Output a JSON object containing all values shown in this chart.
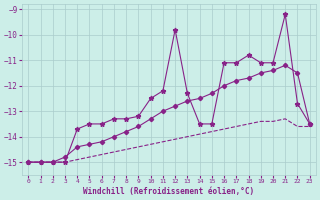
{
  "xlabel": "Windchill (Refroidissement éolien,°C)",
  "bg_color": "#cceee8",
  "grid_color": "#aacccc",
  "line_color": "#882288",
  "x_values": [
    0,
    1,
    2,
    3,
    4,
    5,
    6,
    7,
    8,
    9,
    10,
    11,
    12,
    13,
    14,
    15,
    16,
    17,
    18,
    19,
    20,
    21,
    22,
    23
  ],
  "line1_y": [
    -15.0,
    -15.0,
    -15.0,
    -15.0,
    -13.7,
    -13.5,
    -13.5,
    -13.3,
    -13.3,
    -13.2,
    -12.5,
    -12.2,
    -9.8,
    -12.3,
    -13.5,
    -13.5,
    -11.1,
    -11.1,
    -10.8,
    -11.1,
    -11.1,
    -9.2,
    -12.7,
    -13.5
  ],
  "line2_y": [
    -15.0,
    -15.0,
    -15.0,
    -14.8,
    -14.4,
    -14.3,
    -14.2,
    -14.0,
    -13.8,
    -13.6,
    -13.3,
    -13.0,
    -12.8,
    -12.6,
    -12.5,
    -12.3,
    -12.0,
    -11.8,
    -11.7,
    -11.5,
    -11.4,
    -11.2,
    -11.5,
    -13.5
  ],
  "line3_y": [
    -15.0,
    -15.0,
    -15.0,
    -15.0,
    -14.9,
    -14.8,
    -14.7,
    -14.6,
    -14.5,
    -14.4,
    -14.3,
    -14.2,
    -14.1,
    -14.0,
    -13.9,
    -13.8,
    -13.7,
    -13.6,
    -13.5,
    -13.4,
    -13.4,
    -13.3,
    -13.6,
    -13.6
  ],
  "ylim": [
    -15.5,
    -8.8
  ],
  "xlim": [
    -0.5,
    23.5
  ],
  "yticks": [
    -15,
    -14,
    -13,
    -12,
    -11,
    -10,
    -9
  ],
  "xticks": [
    0,
    1,
    2,
    3,
    4,
    5,
    6,
    7,
    8,
    9,
    10,
    11,
    12,
    13,
    14,
    15,
    16,
    17,
    18,
    19,
    20,
    21,
    22,
    23
  ]
}
